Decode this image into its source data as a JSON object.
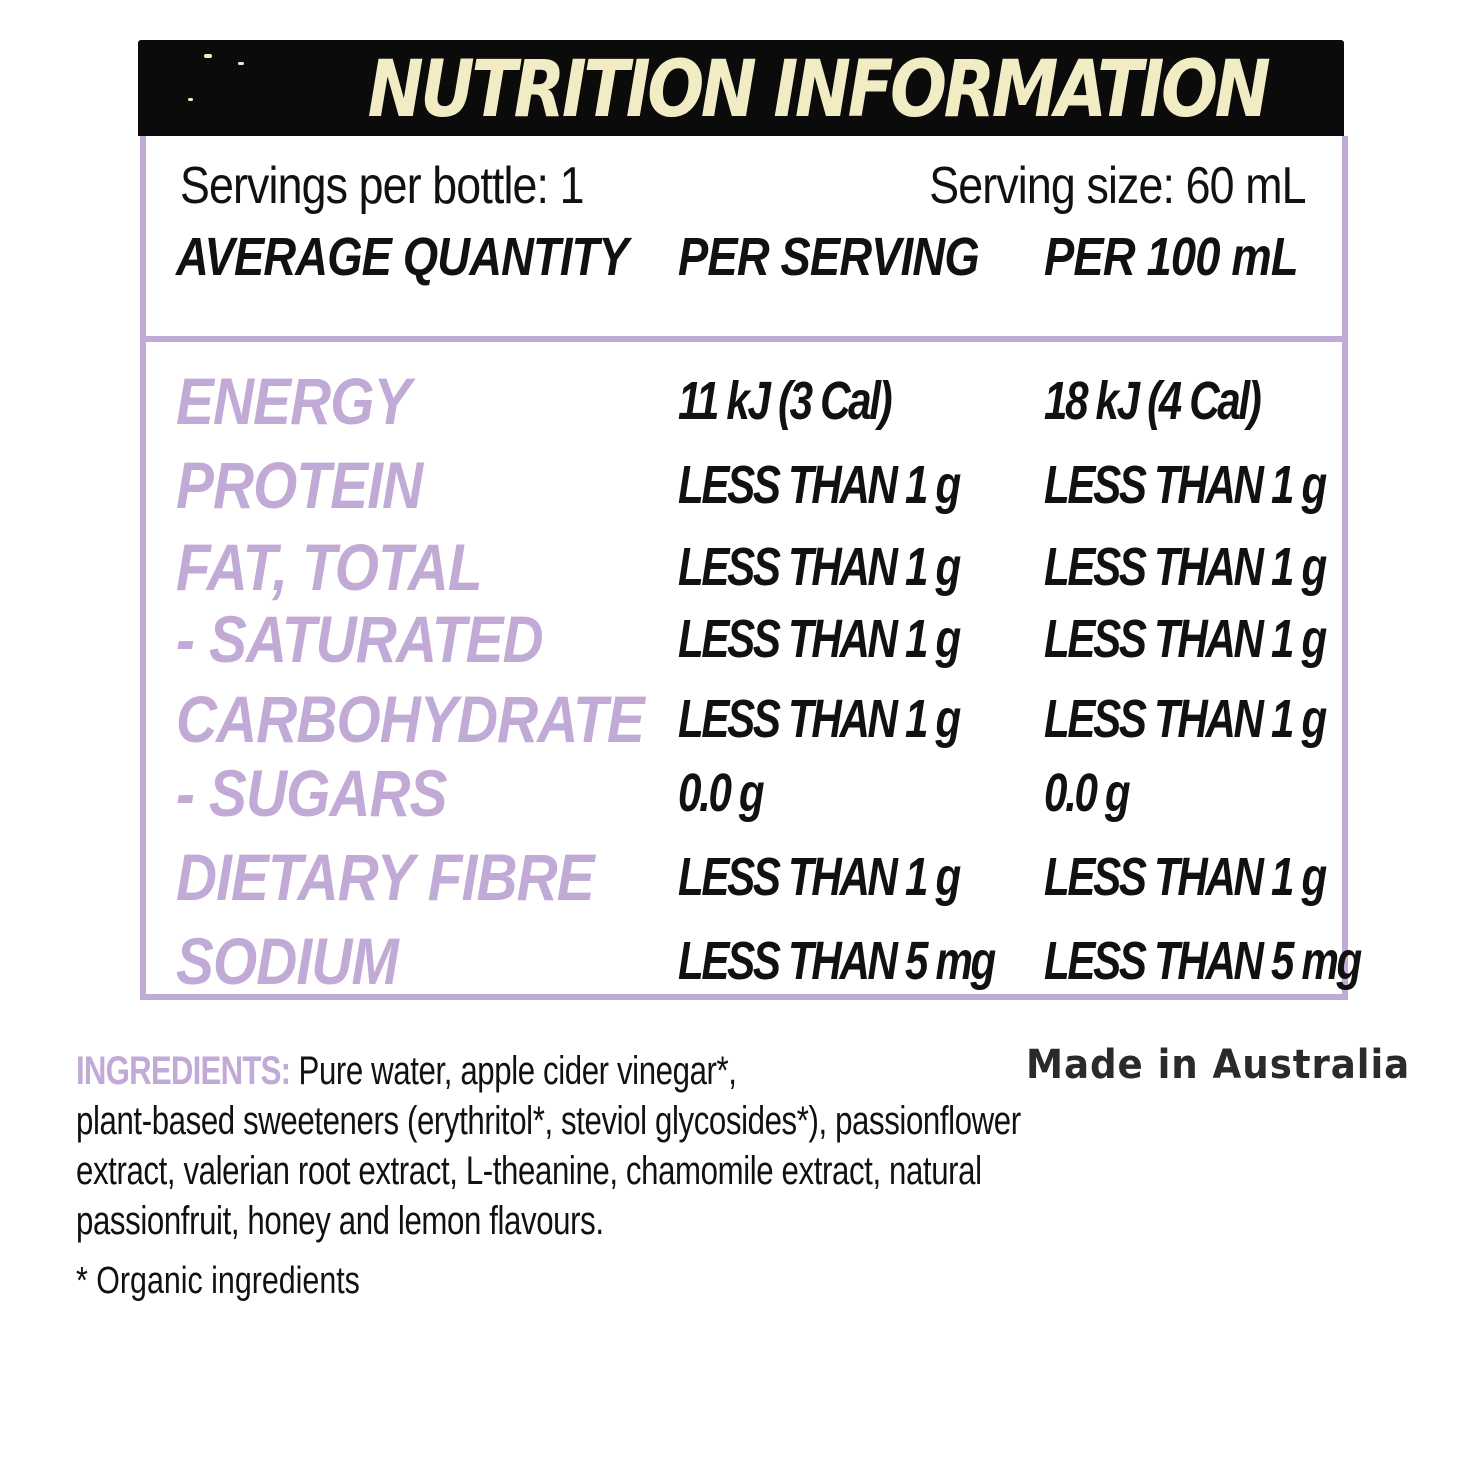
{
  "label": {
    "title": "NUTRITION INFORMATION",
    "servings_per_bottle": "Servings per bottle: 1",
    "serving_size": "Serving size: 60 mL",
    "columns": [
      "AVERAGE QUANTITY",
      "PER SERVING",
      "PER 100 mL"
    ],
    "rows": [
      {
        "nutrient": "ENERGY",
        "per_serving": "11 kJ (3 Cal)",
        "per_100ml": "18 kJ (4 Cal)"
      },
      {
        "nutrient": "PROTEIN",
        "per_serving": "LESS THAN 1 g",
        "per_100ml": "LESS THAN 1 g"
      },
      {
        "nutrient": "FAT, TOTAL",
        "per_serving": "LESS THAN 1 g",
        "per_100ml": "LESS THAN 1 g"
      },
      {
        "nutrient": "- SATURATED",
        "per_serving": "LESS THAN 1 g",
        "per_100ml": "LESS THAN 1 g"
      },
      {
        "nutrient": "CARBOHYDRATE",
        "per_serving": "LESS THAN 1 g",
        "per_100ml": "LESS THAN 1 g"
      },
      {
        "nutrient": "- SUGARS",
        "per_serving": "0.0 g",
        "per_100ml": "0.0 g"
      },
      {
        "nutrient": "DIETARY FIBRE",
        "per_serving": "LESS THAN 1 g",
        "per_100ml": "LESS THAN 1 g"
      },
      {
        "nutrient": "SODIUM",
        "per_serving": "LESS THAN 5 mg",
        "per_100ml": "LESS THAN 5 mg"
      }
    ]
  },
  "ingredients": {
    "label": "INGREDIENTS:",
    "lines": [
      " Pure water, apple cider vinegar*,",
      "plant-based sweeteners (erythritol*, steviol glycosides*), passionflower",
      "extract, valerian root extract, L-theanine, chamomile extract, natural",
      "passionfruit, honey and lemon flavours."
    ],
    "footnote": "* Organic ingredients"
  },
  "origin": "Made in Australia",
  "colors": {
    "title_bar": "#0b0b0b",
    "title_text": "#f1ecc4",
    "accent_lavender": "#c2aad6",
    "text": "#111111"
  }
}
